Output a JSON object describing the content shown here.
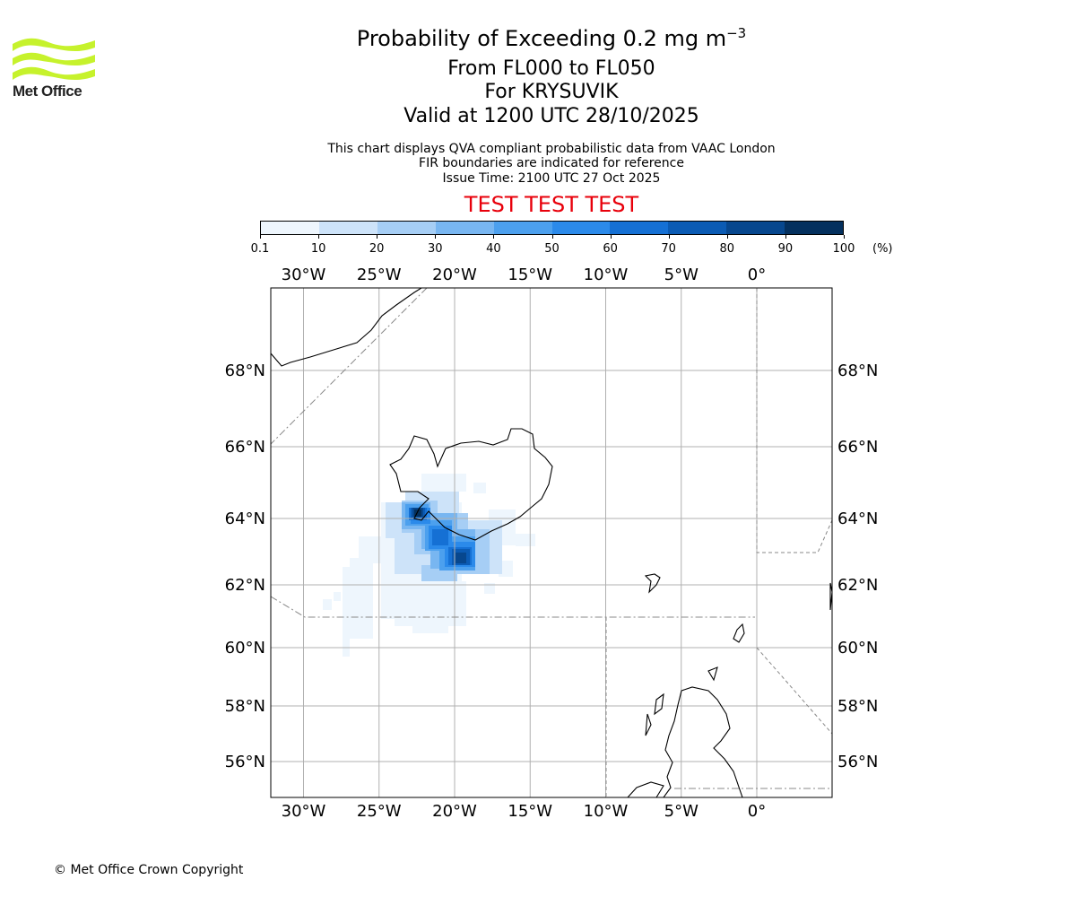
{
  "logo": {
    "text": "Met Office",
    "color": "#c6f22c"
  },
  "title": {
    "line1_prefix": "Probability of Exceeding 0.2 mg m",
    "line1_exponent": "−3",
    "line2": "From FL000 to FL050",
    "line3": "For KRYSUVIK",
    "line4": "Valid at 1200 UTC 28/10/2025"
  },
  "notes": {
    "line1": "This chart displays QVA compliant probabilistic data from VAAC London",
    "line2": "FIR boundaries are indicated for reference",
    "line3": "Issue Time: 2100 UTC 27 Oct 2025"
  },
  "test_banner": "TEST TEST TEST",
  "colorbar": {
    "ticks": [
      "0.1",
      "10",
      "20",
      "30",
      "40",
      "50",
      "60",
      "70",
      "80",
      "90",
      "100"
    ],
    "unit": "(%)",
    "colors": [
      "#eef6fd",
      "#cde3f9",
      "#a6cef5",
      "#78b6f1",
      "#4ca0ee",
      "#2b8aea",
      "#1570d4",
      "#0b5bb4",
      "#07478e",
      "#04305e"
    ]
  },
  "map": {
    "lon_labels": [
      "30°W",
      "25°W",
      "20°W",
      "15°W",
      "10°W",
      "5°W",
      "0°"
    ],
    "lat_labels": [
      "68°N",
      "66°N",
      "64°N",
      "62°N",
      "60°N",
      "58°N",
      "56°N"
    ],
    "lon_values": [
      -30,
      -25,
      -20,
      -15,
      -10,
      -5,
      0
    ],
    "lat_values": [
      68,
      66,
      64,
      62,
      60,
      58,
      56
    ]
  },
  "copyright": "© Met Office Crown Copyright"
}
